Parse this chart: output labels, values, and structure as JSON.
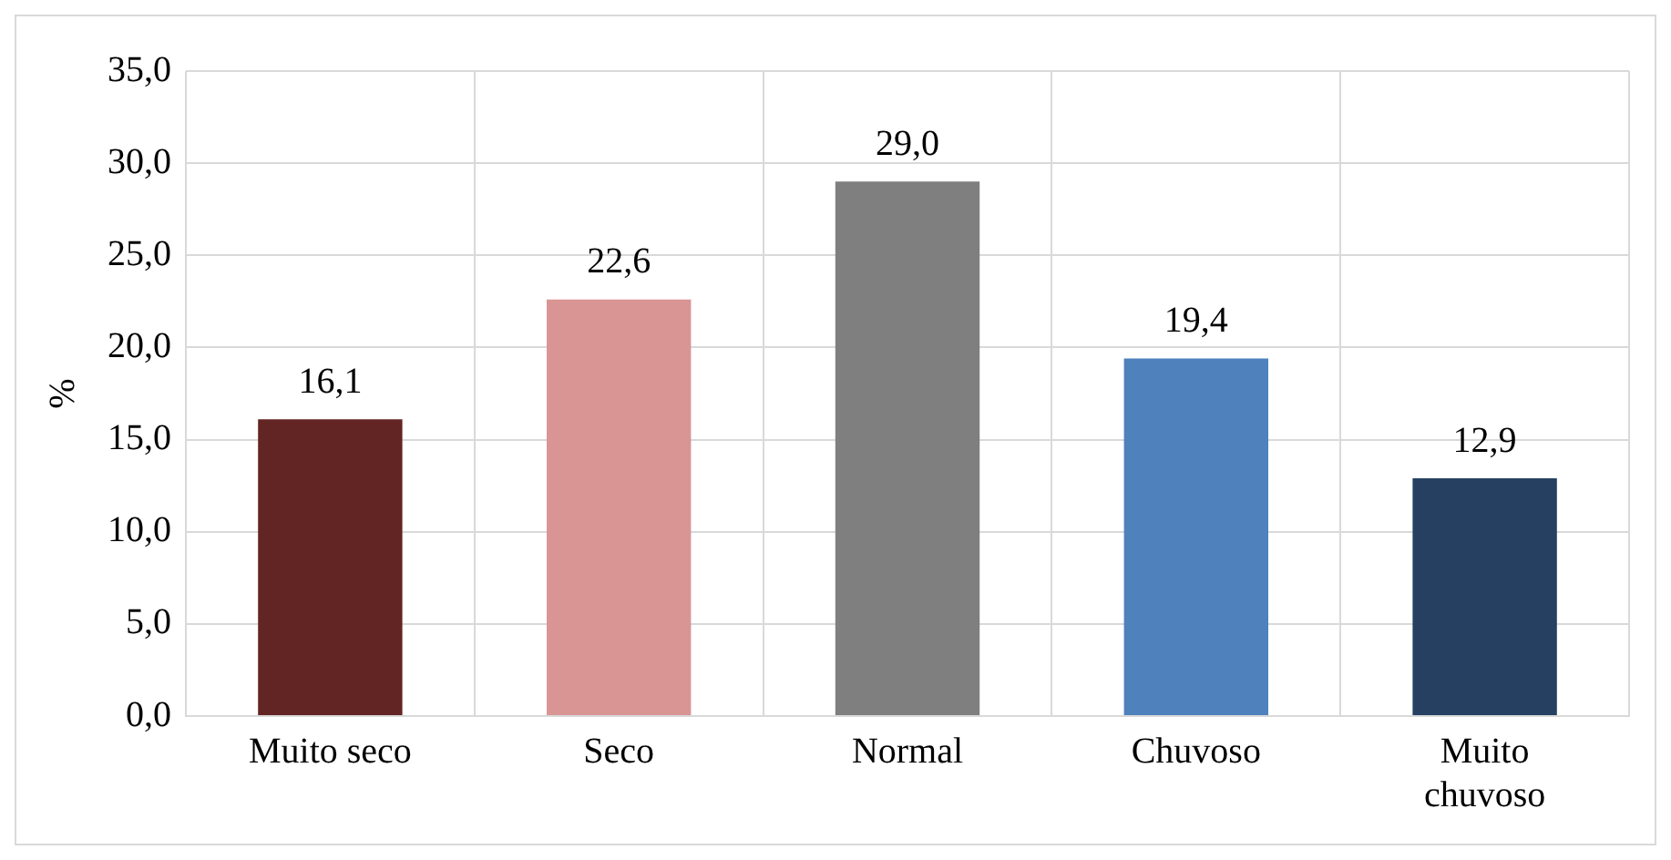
{
  "chart_data": {
    "type": "bar",
    "ylabel": "%",
    "categories": [
      "Muito seco",
      "Seco",
      "Normal",
      "Chuvoso",
      "Muito chuvoso"
    ],
    "values": [
      16.1,
      22.6,
      29.0,
      19.4,
      12.9
    ],
    "colors": [
      "#632523",
      "#d99594",
      "#7f7f7f",
      "#4f81bd",
      "#254061"
    ],
    "ylim": [
      0,
      35
    ],
    "yticks": [
      {
        "value": 0,
        "label": "0,0"
      },
      {
        "value": 5,
        "label": "5,0"
      },
      {
        "value": 10,
        "label": "10,0"
      },
      {
        "value": 15,
        "label": "15,0"
      },
      {
        "value": 20,
        "label": "20,0"
      },
      {
        "value": 25,
        "label": "25,0"
      },
      {
        "value": 30,
        "label": "30,0"
      },
      {
        "value": 35,
        "label": "35,0"
      }
    ],
    "value_labels": [
      "16,1",
      "22,6",
      "29,0",
      "19,4",
      "12,9"
    ],
    "grid": true
  }
}
